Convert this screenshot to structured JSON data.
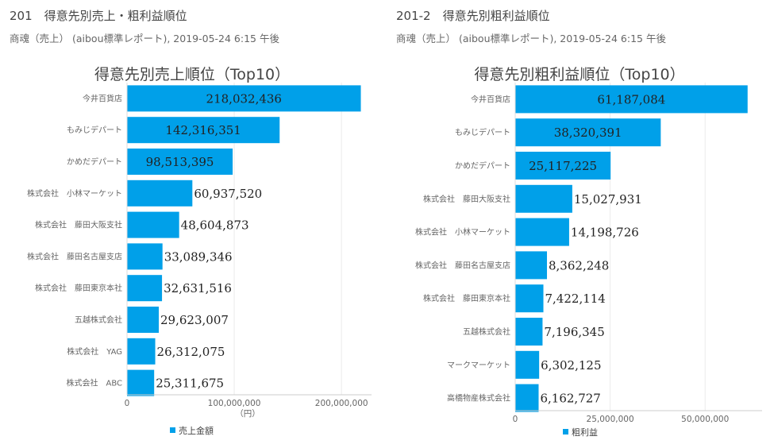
{
  "left": {
    "report_title": "201　得意先別売上・粗利益順位",
    "report_sub": "商魂（売上） (aibou標準レポート), 2019-05-24 6:15 午後"
  },
  "right": {
    "report_title": "201-2　得意先別粗利益順位",
    "report_sub": "商魂（売上） (aibou標準レポート), 2019-05-24 6:15 午後"
  },
  "chart_data": [
    {
      "type": "bar",
      "orientation": "horizontal",
      "title": "得意先別売上順位（Top10）",
      "categories": [
        "今井百貨店",
        "もみじデパート",
        "かめだデパート",
        "株式会社　小林マーケット",
        "株式会社　藤田大阪支社",
        "株式会社　藤田名古屋支店",
        "株式会社　藤田東京本社",
        "五越株式会社",
        "株式会社　YAG",
        "株式会社　ABC"
      ],
      "series": [
        {
          "name": "売上金額",
          "values": [
            218032436,
            142316351,
            98513395,
            60937520,
            48604873,
            33089346,
            32631516,
            29623007,
            26312075,
            25311675
          ]
        }
      ],
      "value_labels": [
        "218,032,436",
        "142,316,351",
        "98,513,395",
        "60,937,520",
        "48,604,873",
        "33,089,346",
        "32,631,516",
        "29,623,007",
        "26,312,075",
        "25,311,675"
      ],
      "xticks": [
        0,
        100000000,
        200000000
      ],
      "xtick_labels": [
        "0",
        "100,000,000",
        "200,000,000"
      ],
      "xlim": [
        0,
        228000000
      ],
      "xlabel": "（円）",
      "legend": "bottom",
      "color": "#00a0e9"
    },
    {
      "type": "bar",
      "orientation": "horizontal",
      "title": "得意先別粗利益順位（Top10）",
      "categories": [
        "今井百貨店",
        "もみじデパート",
        "かめだデパート",
        "株式会社　藤田大阪支社",
        "株式会社　小林マーケット",
        "株式会社　藤田名古屋支店",
        "株式会社　藤田東京本社",
        "五越株式会社",
        "マークマーケット",
        "高橋物産株式会社"
      ],
      "series": [
        {
          "name": "粗利益",
          "values": [
            61187084,
            38320391,
            25117225,
            15027931,
            14198726,
            8362248,
            7422114,
            7196345,
            6302125,
            6162727
          ]
        }
      ],
      "value_labels": [
        "61,187,084",
        "38,320,391",
        "25,117,225",
        "15,027,931",
        "14,198,726",
        "8,362,248",
        "7,422,114",
        "7,196,345",
        "6,302,125",
        "6,162,727"
      ],
      "xticks": [
        0,
        25000000,
        50000000
      ],
      "xtick_labels": [
        "0",
        "25,000,000",
        "50,000,000"
      ],
      "xlim": [
        0,
        65000000
      ],
      "xlabel": "",
      "legend": "bottom",
      "color": "#00a0e9"
    }
  ]
}
